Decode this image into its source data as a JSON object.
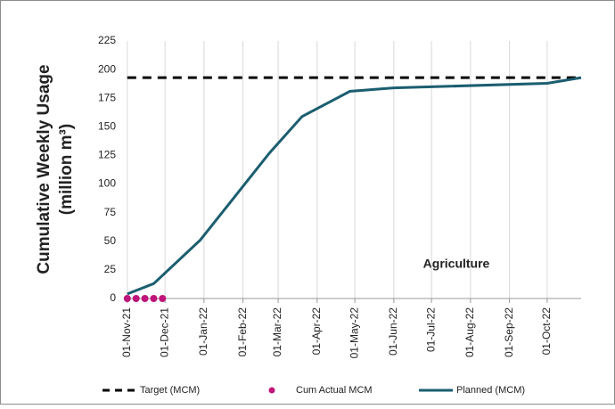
{
  "chart_data": {
    "type": "line",
    "ylabel": [
      "Cumulative Weekly Usage",
      "(million m³)"
    ],
    "annotation": "Agriculture",
    "xlim": [
      "2021-10-30",
      "2022-10-28"
    ],
    "xticks": [
      {
        "value": "2021-11-01",
        "label": "01-Nov-21"
      },
      {
        "value": "2021-12-01",
        "label": "01-Dec-21"
      },
      {
        "value": "2022-01-01",
        "label": "01-Jan-22"
      },
      {
        "value": "2022-02-01",
        "label": "01-Feb-22"
      },
      {
        "value": "2022-03-01",
        "label": "01-Mar-22"
      },
      {
        "value": "2022-04-01",
        "label": "01-Apr-22"
      },
      {
        "value": "2022-05-01",
        "label": "01-May-22"
      },
      {
        "value": "2022-06-01",
        "label": "01-Jun-22"
      },
      {
        "value": "2022-07-01",
        "label": "01-Jul-22"
      },
      {
        "value": "2022-08-01",
        "label": "01-Aug-22"
      },
      {
        "value": "2022-09-01",
        "label": "01-Sep-22"
      },
      {
        "value": "2022-10-01",
        "label": "01-Oct-22"
      }
    ],
    "ylim": [
      0,
      225
    ],
    "yticks": [
      0,
      25,
      50,
      75,
      100,
      125,
      150,
      175,
      200,
      225
    ],
    "grid": true,
    "legend": "bottom",
    "series": [
      {
        "name": "Target (MCM)",
        "color": "#000000",
        "style": "dashed",
        "x": [
          "2021-11-01",
          "2022-10-28"
        ],
        "values": [
          193,
          193
        ]
      },
      {
        "name": "Cum Actual MCM",
        "color": "#c0157a",
        "style": "markers",
        "x": [
          "2021-11-01",
          "2021-11-08",
          "2021-11-15",
          "2021-11-22",
          "2021-11-29"
        ],
        "values": [
          0,
          0,
          0,
          0,
          0
        ]
      },
      {
        "name": "Planned (MCM)",
        "color": "#1b5e70",
        "style": "solid",
        "x": [
          "2021-11-01",
          "2021-11-22",
          "2021-12-29",
          "2022-02-22",
          "2022-03-20",
          "2022-04-27",
          "2022-06-01",
          "2022-10-01",
          "2022-10-28"
        ],
        "values": [
          4,
          13,
          51,
          127,
          159,
          181,
          184,
          188,
          193
        ]
      }
    ]
  }
}
